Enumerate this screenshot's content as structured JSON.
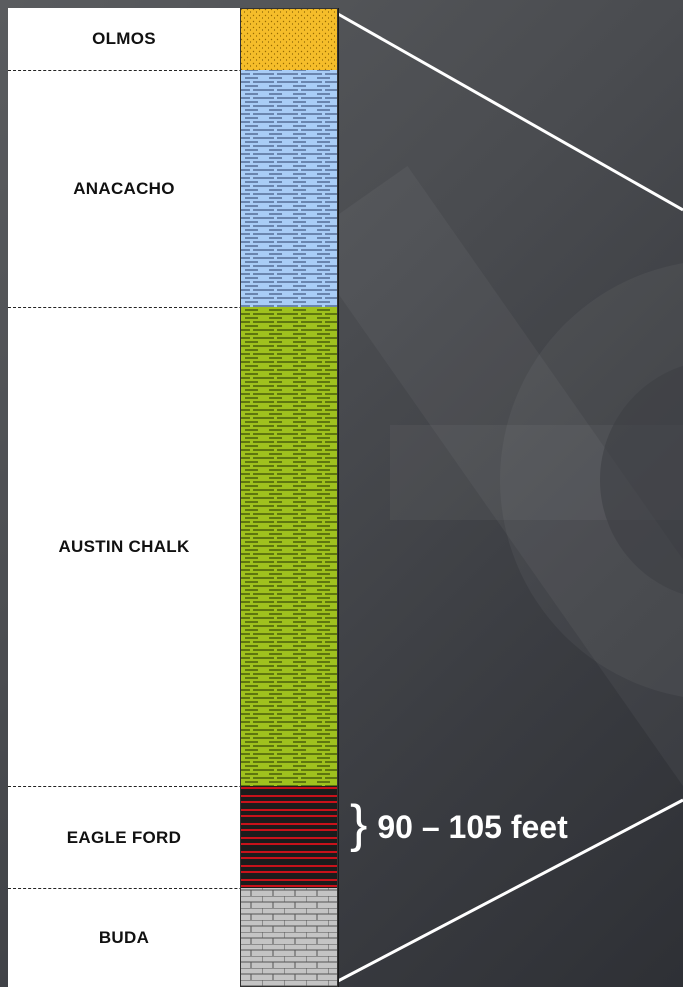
{
  "formations": [
    {
      "name": "OLMOS",
      "lithology": "sandstone",
      "color": "#f5bd2a"
    },
    {
      "name": "ANACACHO",
      "lithology": "shale",
      "color": "#a9cdf6"
    },
    {
      "name": "AUSTIN CHALK",
      "lithology": "shale",
      "color": "#9fc11e"
    },
    {
      "name": "EAGLE FORD",
      "lithology": "shale",
      "color": "#c8121a"
    },
    {
      "name": "BUDA",
      "lithology": "limestone",
      "color": "#c4c4c4"
    }
  ],
  "annotation": {
    "brace": "}",
    "thickness": "90 – 105 feet"
  },
  "colors": {
    "background": "#45474b",
    "connector_lines": "#ffffff"
  },
  "icons": {
    "background_watermark": "gear-icon"
  }
}
